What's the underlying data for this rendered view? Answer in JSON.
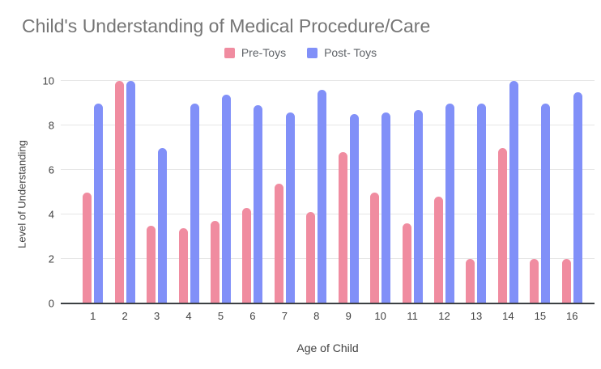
{
  "chart_data": {
    "type": "bar",
    "title": "Child's Understanding of Medical Procedure/Care",
    "xlabel": "Age of Child",
    "ylabel": "Level of Understanding",
    "categories": [
      "1",
      "2",
      "3",
      "4",
      "5",
      "6",
      "7",
      "8",
      "9",
      "10",
      "11",
      "12",
      "13",
      "14",
      "15",
      "16"
    ],
    "series": [
      {
        "name": "Pre-Toys",
        "color": "#f08ca0",
        "values": [
          5.0,
          10.0,
          3.5,
          3.4,
          3.7,
          4.3,
          5.4,
          4.1,
          6.8,
          5.0,
          3.6,
          4.8,
          2.0,
          7.0,
          2.0,
          2.0
        ]
      },
      {
        "name": "Post- Toys",
        "color": "#8190f8",
        "values": [
          9.0,
          10.0,
          7.0,
          9.0,
          9.4,
          8.9,
          8.6,
          9.6,
          8.5,
          8.6,
          8.7,
          9.0,
          9.0,
          10.0,
          9.0,
          9.5
        ]
      }
    ],
    "ylim": [
      0,
      10
    ],
    "yticks": [
      0,
      2,
      4,
      6,
      8,
      10
    ],
    "grid": true,
    "legend_position": "top"
  }
}
